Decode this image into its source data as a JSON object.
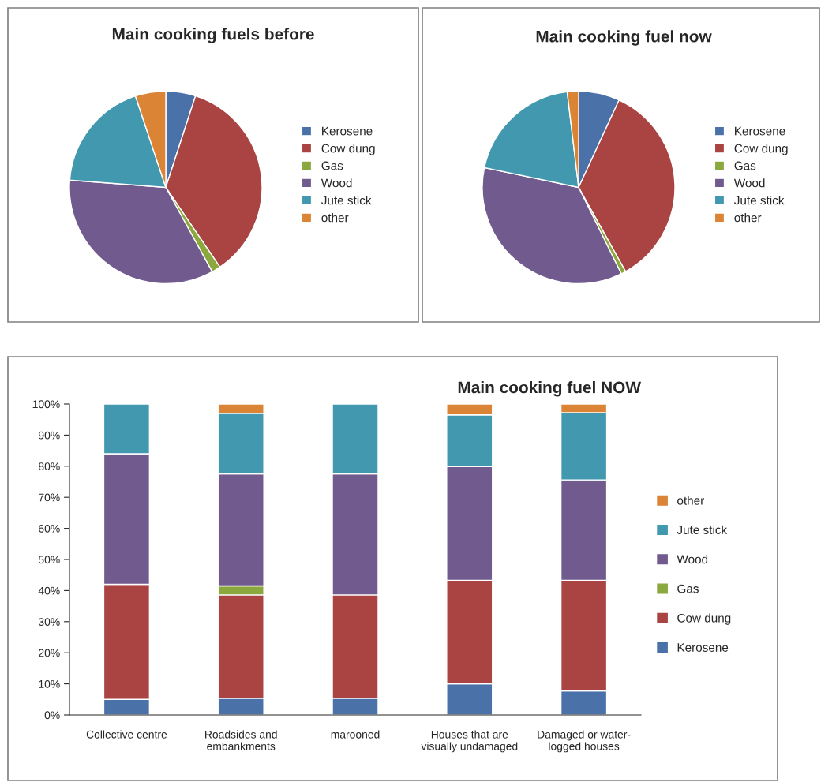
{
  "chart_data": [
    {
      "type": "pie",
      "title": "Main cooking fuels before",
      "categories": [
        "Kerosene",
        "Cow dung",
        "Gas",
        "Wood",
        "Jute stick",
        "other"
      ],
      "values": [
        5,
        35.5,
        1.5,
        34.2,
        18.7,
        5.1
      ],
      "colors": [
        "#4a72a8",
        "#a94442",
        "#8aa83e",
        "#705a8e",
        "#4298ae",
        "#dc8436"
      ],
      "legend": "right"
    },
    {
      "type": "pie",
      "title": "Main cooking fuel now",
      "categories": [
        "Kerosene",
        "Cow dung",
        "Gas",
        "Wood",
        "Jute stick",
        "other"
      ],
      "values": [
        6.9,
        35,
        0.8,
        35.6,
        19.8,
        1.9
      ],
      "colors": [
        "#4a72a8",
        "#a94442",
        "#8aa83e",
        "#705a8e",
        "#4298ae",
        "#dc8436"
      ],
      "legend": "right"
    },
    {
      "type": "bar",
      "stacked": true,
      "title": "Main cooking fuel NOW",
      "categories": [
        "Collective centre",
        "Roadsides and\nembankments",
        "marooned",
        "Houses that are\nvisually undamaged",
        "Damaged or water-\nlogged houses"
      ],
      "ylim": [
        0,
        100
      ],
      "yticks": [
        {
          "value": 0,
          "label": "0%"
        },
        {
          "value": 10,
          "label": "10%"
        },
        {
          "value": 20,
          "label": "20%"
        },
        {
          "value": 30,
          "label": "30%"
        },
        {
          "value": 40,
          "label": "40%"
        },
        {
          "value": 50,
          "label": "50%"
        },
        {
          "value": 60,
          "label": "60%"
        },
        {
          "value": 70,
          "label": "70%"
        },
        {
          "value": 80,
          "label": "80%"
        },
        {
          "value": 90,
          "label": "90%"
        },
        {
          "value": 100,
          "label": "100%"
        }
      ],
      "grid": false,
      "legend": "right",
      "series": [
        {
          "name": "Kerosene",
          "color": "#4a72a8",
          "values": [
            5,
            5.4,
            5.4,
            10,
            7.7
          ]
        },
        {
          "name": "Cow dung",
          "color": "#a94442",
          "values": [
            37,
            33.2,
            33.2,
            33.3,
            35.6
          ]
        },
        {
          "name": "Gas",
          "color": "#8aa83e",
          "values": [
            null,
            2.9,
            null,
            null,
            null
          ]
        },
        {
          "name": "Wood",
          "color": "#705a8e",
          "values": [
            42,
            36,
            38.9,
            36.6,
            32.3
          ]
        },
        {
          "name": "Jute stick",
          "color": "#4298ae",
          "values": [
            16,
            19.5,
            22.5,
            16.6,
            21.6
          ]
        },
        {
          "name": "other",
          "color": "#dc8436",
          "values": [
            null,
            3,
            null,
            3.5,
            2.8
          ]
        }
      ]
    }
  ]
}
